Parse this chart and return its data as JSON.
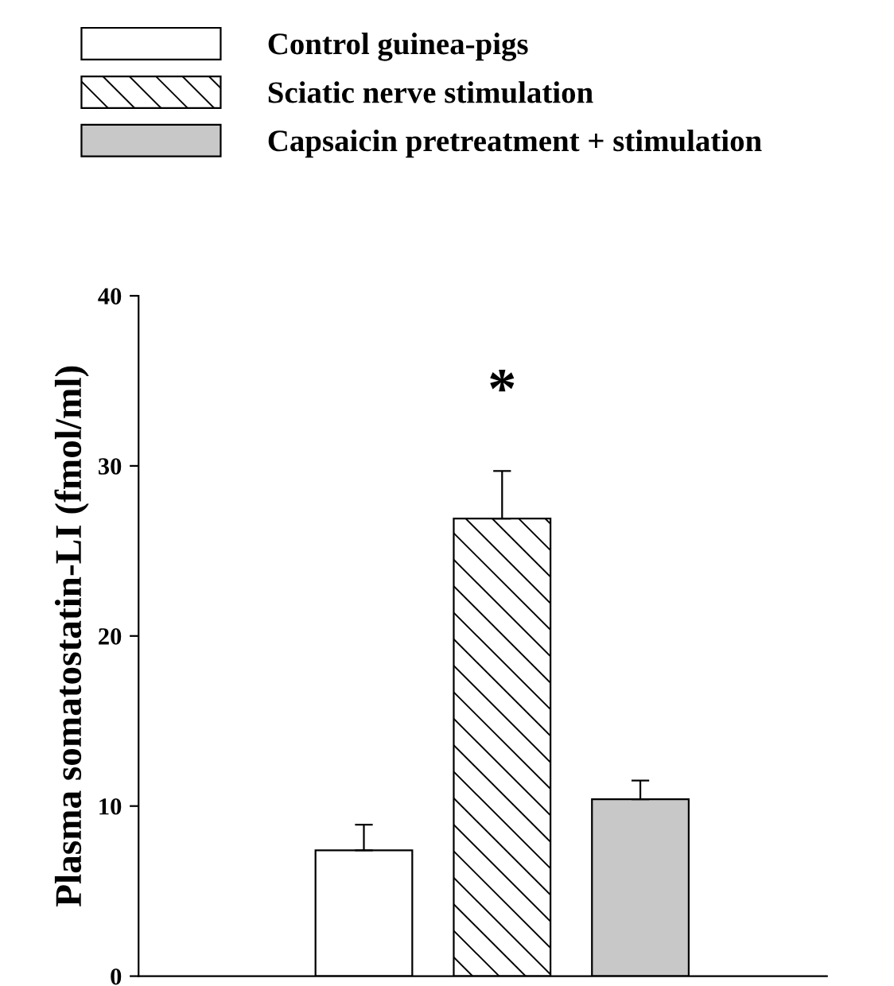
{
  "chart_data": {
    "type": "bar",
    "ylabel": "Plasma somatostatin-LI (fmol/ml)",
    "categories": [
      null,
      null,
      null
    ],
    "series": [
      {
        "name": "Control guinea-pigs",
        "color": "#ffffff",
        "values": [
          7.4,
          null,
          null
        ],
        "errors": [
          1.5,
          null,
          null
        ]
      },
      {
        "name": "Sciatic nerve stimulation",
        "color": "#000000",
        "values": [
          null,
          26.9,
          null
        ],
        "errors": [
          null,
          2.8,
          null
        ]
      },
      {
        "name": "Capsaicin pretreatment + stimulation",
        "color": "#c8c8c8",
        "values": [
          null,
          null,
          10.4
        ],
        "errors": [
          null,
          null,
          1.1
        ]
      }
    ],
    "ylim": [
      0,
      40
    ],
    "yticks": [
      0,
      10,
      20,
      30,
      40
    ],
    "legend": "top left",
    "grid": false,
    "tick_labels": "y",
    "annotations": [
      "*"
    ]
  }
}
